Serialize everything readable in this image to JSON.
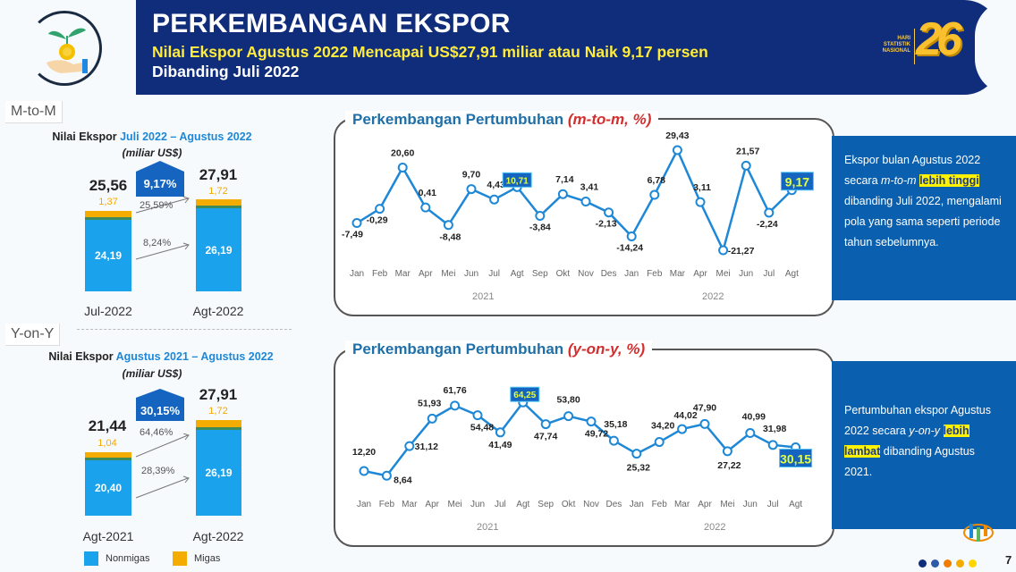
{
  "header": {
    "title": "PERKEMBANGAN EKSPOR",
    "subtitle_line1": "Nilai Ekspor Agustus 2022 Mencapai US$27,91 miliar atau Naik 9,17 persen",
    "subtitle_line2": "Dibanding Juli 2022",
    "event_logo_text": [
      "HARI",
      "STATISTIK",
      "NASIONAL"
    ],
    "event_logo_number": "26",
    "logo_icon": "plant-coin-hand-icon"
  },
  "colors": {
    "header_bg": "#0f2d7a",
    "nonmigas": "#1aa3ec",
    "migas": "#f5ac00",
    "line": "#1e88d6",
    "note_bg": "#0a5fae",
    "highlight": "#fff200"
  },
  "mtom_panel": {
    "tag": "M-to-M",
    "title_prefix": "Nilai Ekspor ",
    "title_period": "Juli  2022 – Agustus 2022",
    "unit": "(miliar US$)",
    "growth_badge": "9,17%",
    "bars": [
      {
        "label": "Jul-2022",
        "total": "25,56",
        "migas": "1,37",
        "nonmigas": "24,19"
      },
      {
        "label": "Agt-2022",
        "total": "27,91",
        "migas": "1,72",
        "nonmigas": "26,19"
      }
    ],
    "migas_growth": "25,59%",
    "nonmigas_growth": "8,24%"
  },
  "yony_panel": {
    "tag": "Y-on-Y",
    "title_prefix": "Nilai Ekspor ",
    "title_period": "Agustus 2021 – Agustus 2022",
    "unit": "(miliar US$)",
    "growth_badge": "30,15%",
    "bars": [
      {
        "label": "Agt-2021",
        "total": "21,44",
        "migas": "1,04",
        "nonmigas": "20,40"
      },
      {
        "label": "Agt-2022",
        "total": "27,91",
        "migas": "1,72",
        "nonmigas": "26,19"
      }
    ],
    "migas_growth": "64,46%",
    "nonmigas_growth": "28,39%"
  },
  "legend": [
    {
      "label": "Nonmigas",
      "color": "#1aa3ec"
    },
    {
      "label": "Migas",
      "color": "#f5ac00"
    }
  ],
  "mtom_chart": {
    "title": "Perkembangan Pertumbuhan ",
    "title_unit": "(m-to-m, %)",
    "year_labels": [
      "2021",
      "2022"
    ]
  },
  "yony_chart": {
    "title": "Perkembangan Pertumbuhan ",
    "title_unit": "(y-on-y, %)",
    "year_labels": [
      "2021",
      "2022"
    ]
  },
  "notes": {
    "mtom_parts": [
      "Ekspor bulan Agustus 2022 secara ",
      "m-to-m",
      " ",
      "lebih tinggi",
      " dibanding Juli 2022, mengalami pola yang sama seperti periode tahun sebelumnya."
    ],
    "yony_parts": [
      "Pertumbuhan ekspor Agustus 2022 secara ",
      "y-on-y",
      " ",
      "lebih lambat",
      " dibanding Agustus 2021."
    ]
  },
  "footer": {
    "page_number": "7",
    "dot_colors": [
      "#0f2d7a",
      "#2f5aa8",
      "#f07c00",
      "#f5ac00",
      "#ffd600"
    ]
  },
  "chart_data": [
    {
      "type": "line",
      "title": "Perkembangan Pertumbuhan (m-to-m, %)",
      "x": [
        "Jan 2021",
        "Feb 2021",
        "Mar 2021",
        "Apr 2021",
        "Mei 2021",
        "Jun 2021",
        "Jul 2021",
        "Agt 2021",
        "Sep 2021",
        "Okt 2021",
        "Nov 2021",
        "Des 2021",
        "Jan 2022",
        "Feb 2022",
        "Mar 2022",
        "Apr 2022",
        "Mei 2022",
        "Jun 2022",
        "Jul 2022",
        "Agt 2022"
      ],
      "categories": [
        "Jan",
        "Feb",
        "Mar",
        "Apr",
        "Mei",
        "Jun",
        "Jul",
        "Agt",
        "Sep",
        "Okt",
        "Nov",
        "Des",
        "Jan",
        "Feb",
        "Mar",
        "Apr",
        "Mei",
        "Jun",
        "Jul",
        "Agt"
      ],
      "values": [
        -7.49,
        -0.29,
        20.6,
        0.41,
        -8.48,
        9.7,
        4.43,
        10.71,
        -3.84,
        7.14,
        3.41,
        -2.13,
        -14.24,
        6.78,
        29.43,
        3.11,
        -21.27,
        21.57,
        -2.24,
        9.17
      ],
      "labels": [
        "-7,49",
        "-0,29",
        "20,60",
        "0,41",
        "-8,48",
        "9,70",
        "4,43",
        "10,71",
        "-3,84",
        "7,14",
        "3,41",
        "-2,13",
        "-14,24",
        "6,78",
        "29,43",
        "3,11",
        "-21,27",
        "21,57",
        "-2,24",
        "9,17"
      ],
      "highlighted": [
        "Agt 2021",
        "Agt 2022"
      ],
      "xlabel": "",
      "ylabel": "%",
      "grid": false
    },
    {
      "type": "line",
      "title": "Perkembangan Pertumbuhan (y-on-y, %)",
      "x": [
        "Jan 2021",
        "Feb 2021",
        "Mar 2021",
        "Apr 2021",
        "Mei 2021",
        "Jun 2021",
        "Jul 2021",
        "Agt 2021",
        "Sep 2021",
        "Okt 2021",
        "Nov 2021",
        "Des 2021",
        "Jan 2022",
        "Feb 2022",
        "Mar 2022",
        "Apr 2022",
        "Mei 2022",
        "Jun 2022",
        "Jul 2022",
        "Agt 2022"
      ],
      "categories": [
        "Jan",
        "Feb",
        "Mar",
        "Apr",
        "Mei",
        "Jun",
        "Jul",
        "Agt",
        "Sep",
        "Okt",
        "Nov",
        "Des",
        "Jan",
        "Feb",
        "Mar",
        "Apr",
        "Mei",
        "Jun",
        "Jul",
        "Agt"
      ],
      "values": [
        12.2,
        8.64,
        31.12,
        51.93,
        61.76,
        54.48,
        41.49,
        64.25,
        47.74,
        53.8,
        49.72,
        35.18,
        25.32,
        34.2,
        44.02,
        47.9,
        27.22,
        40.99,
        31.98,
        30.15
      ],
      "labels": [
        "12,20",
        "8,64",
        "31,12",
        "51,93",
        "61,76",
        "54,48",
        "41,49",
        "64,25",
        "47,74",
        "53,80",
        "49,72",
        "35,18",
        "25,32",
        "34,20",
        "44,02",
        "47,90",
        "27,22",
        "40,99",
        "31,98",
        "30,15"
      ],
      "highlighted": [
        "Agt 2021",
        "Agt 2022"
      ],
      "xlabel": "",
      "ylabel": "%",
      "grid": false
    },
    {
      "type": "bar",
      "title": "Nilai Ekspor Juli 2022 – Agustus 2022 (miliar US$)",
      "categories": [
        "Jul-2022",
        "Agt-2022"
      ],
      "series": [
        {
          "name": "Nonmigas",
          "values": [
            24.19,
            26.19
          ]
        },
        {
          "name": "Migas",
          "values": [
            1.37,
            1.72
          ]
        }
      ],
      "totals": [
        25.56,
        27.91
      ],
      "annotations": [
        "9,17%",
        "25,59%",
        "8,24%"
      ],
      "stacked": true
    },
    {
      "type": "bar",
      "title": "Nilai Ekspor Agustus 2021 – Agustus 2022 (miliar US$)",
      "categories": [
        "Agt-2021",
        "Agt-2022"
      ],
      "series": [
        {
          "name": "Nonmigas",
          "values": [
            20.4,
            26.19
          ]
        },
        {
          "name": "Migas",
          "values": [
            1.04,
            1.72
          ]
        }
      ],
      "totals": [
        21.44,
        27.91
      ],
      "annotations": [
        "30,15%",
        "64,46%",
        "28,39%"
      ],
      "stacked": true
    }
  ]
}
